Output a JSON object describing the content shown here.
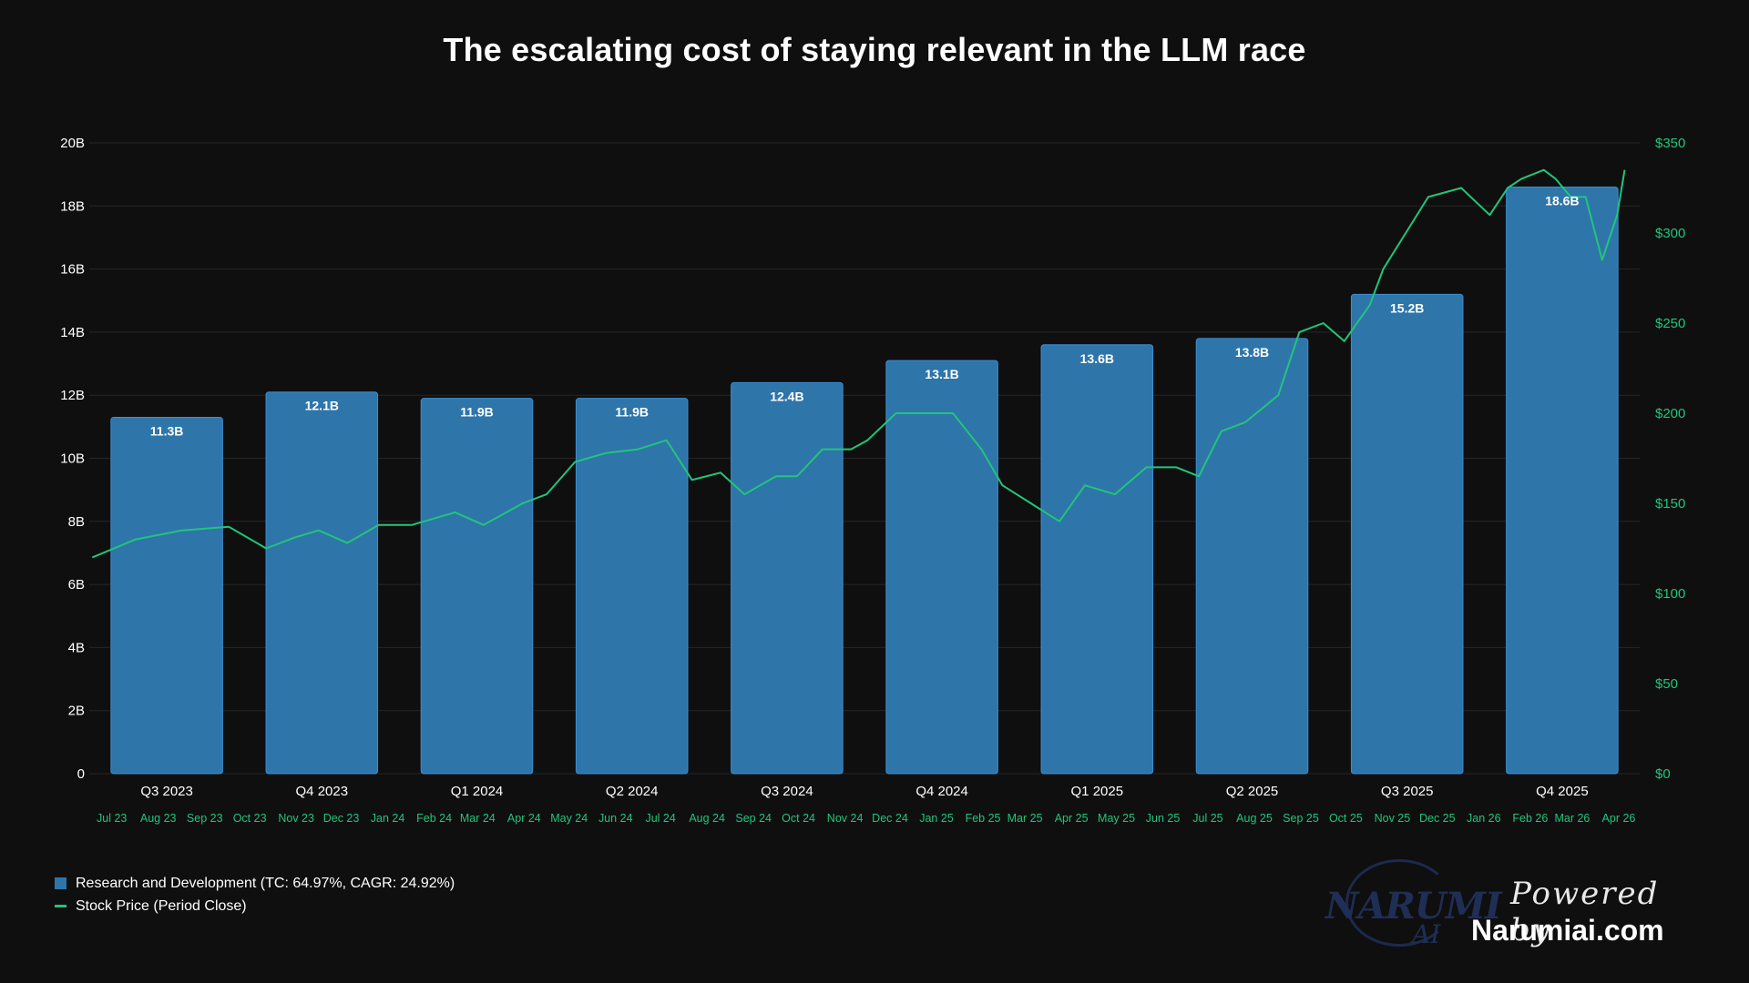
{
  "chart_data": {
    "type": "bar",
    "title": "The escalating cost of staying relevant in the LLM race",
    "categories": [
      "Q3 2023",
      "Q4 2023",
      "Q1 2024",
      "Q2 2024",
      "Q3 2024",
      "Q4 2024",
      "Q1 2025",
      "Q2 2025",
      "Q3 2025",
      "Q4 2025"
    ],
    "series": [
      {
        "name": "Research and Development (TC: 64.97%, CAGR: 24.92%)",
        "type": "bar",
        "axis": "left",
        "color": "#2e75aa",
        "values": [
          11.3,
          12.1,
          11.9,
          11.9,
          12.4,
          13.1,
          13.6,
          13.8,
          15.2,
          18.6
        ],
        "labels": [
          "11.3B",
          "12.1B",
          "11.9B",
          "11.9B",
          "12.4B",
          "13.1B",
          "13.6B",
          "13.8B",
          "15.2B",
          "18.6B"
        ]
      },
      {
        "name": "Stock Price (Period Close)",
        "type": "line",
        "axis": "right",
        "color": "#22c57a",
        "x": [
          "2023-07-03",
          "2023-08-01",
          "2023-09-01",
          "2023-10-02",
          "2023-10-27",
          "2023-11-15",
          "2023-12-01",
          "2023-12-20",
          "2024-01-10",
          "2024-02-01",
          "2024-03-01",
          "2024-03-20",
          "2024-04-15",
          "2024-05-01",
          "2024-05-20",
          "2024-06-10",
          "2024-07-01",
          "2024-07-20",
          "2024-08-06",
          "2024-08-25",
          "2024-09-10",
          "2024-10-01",
          "2024-10-15",
          "2024-11-01",
          "2024-11-20",
          "2024-12-01",
          "2024-12-20",
          "2025-01-10",
          "2025-01-27",
          "2025-02-15",
          "2025-03-01",
          "2025-03-20",
          "2025-04-08",
          "2025-04-25",
          "2025-05-15",
          "2025-06-05",
          "2025-06-25",
          "2025-07-10",
          "2025-07-25",
          "2025-08-10",
          "2025-09-01",
          "2025-09-15",
          "2025-10-01",
          "2025-10-15",
          "2025-11-01",
          "2025-11-10",
          "2025-11-25",
          "2025-12-10",
          "2026-01-01",
          "2026-01-20",
          "2026-02-01",
          "2026-02-10",
          "2026-02-25",
          "2026-03-05",
          "2026-03-15",
          "2026-03-25",
          "2026-04-05",
          "2026-04-15",
          "2026-04-20"
        ],
        "y": [
          120,
          130,
          135,
          137,
          125,
          131,
          135,
          128,
          138,
          138,
          145,
          138,
          150,
          155,
          173,
          178,
          180,
          185,
          163,
          167,
          155,
          165,
          165,
          180,
          180,
          185,
          200,
          200,
          200,
          180,
          160,
          150,
          140,
          160,
          155,
          170,
          170,
          165,
          190,
          195,
          210,
          245,
          250,
          240,
          260,
          280,
          300,
          320,
          325,
          310,
          325,
          330,
          335,
          330,
          320,
          320,
          285,
          310,
          335
        ]
      }
    ],
    "y_left": {
      "min": 0,
      "max": 20,
      "ticks": [
        "0",
        "2B",
        "4B",
        "6B",
        "8B",
        "10B",
        "12B",
        "14B",
        "16B",
        "18B",
        "20B"
      ]
    },
    "y_right": {
      "min": 0,
      "max": 350,
      "ticks": [
        "$0",
        "$50",
        "$100",
        "$150",
        "$200",
        "$250",
        "$300",
        "$350"
      ]
    },
    "x_months": [
      "Jul 23",
      "Aug 23",
      "Sep 23",
      "Oct 23",
      "Nov 23",
      "Dec 23",
      "Jan 24",
      "Feb 24",
      "Mar 24",
      "Apr 24",
      "May 24",
      "Jun 24",
      "Jul 24",
      "Aug 24",
      "Sep 24",
      "Oct 24",
      "Nov 24",
      "Dec 24",
      "Jan 25",
      "Feb 25",
      "Mar 25",
      "Apr 25",
      "May 25",
      "Jun 25",
      "Jul 25",
      "Aug 25",
      "Sep 25",
      "Oct 25",
      "Nov 25",
      "Dec 25",
      "Jan 26",
      "Feb 26",
      "Mar 26",
      "Apr 26"
    ],
    "grid": true,
    "legend_position": "bottom-left",
    "colors": {
      "background": "#0f0f10",
      "bar": "#2e75aa",
      "line": "#22c57a",
      "grid": "#262626"
    }
  },
  "watermark": {
    "logo_text": "NARUMI",
    "logo_sub": "AI",
    "powered_by": "Powered by",
    "site": "Narumiai.com"
  }
}
